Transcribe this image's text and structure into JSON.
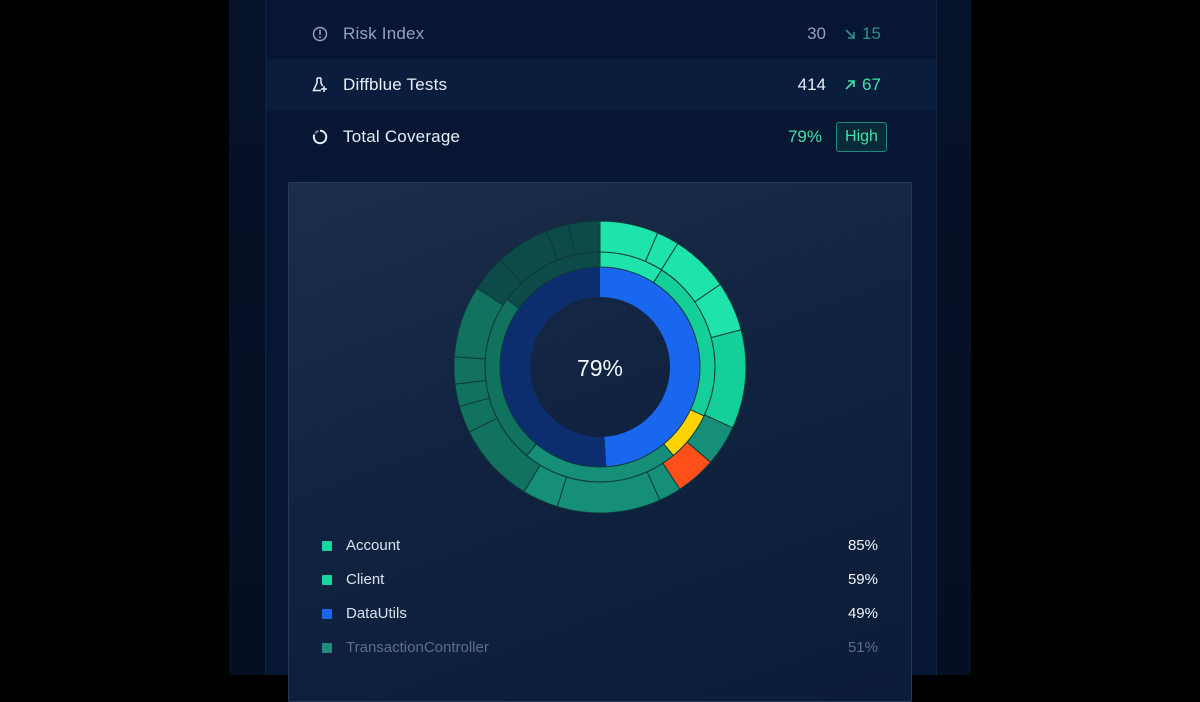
{
  "metrics": [
    {
      "label": "Risk Index",
      "value": "30",
      "delta": "15",
      "delta_direction": "down",
      "icon": "alert-circle-icon"
    },
    {
      "label": "Diffblue Tests",
      "value": "414",
      "delta": "67",
      "delta_direction": "up",
      "icon": "flask-plus-icon"
    },
    {
      "label": "Total Coverage",
      "value": "79%",
      "badge": "High",
      "icon": "coverage-ring-icon"
    }
  ],
  "chart": {
    "center_label": "79%"
  },
  "legend": [
    {
      "name": "Account",
      "percent": "85%",
      "color": "#17d6a0"
    },
    {
      "name": "Client",
      "percent": "59%",
      "color": "#17d6a0"
    },
    {
      "name": "DataUtils",
      "percent": "49%",
      "color": "#1967ef"
    },
    {
      "name": "TransactionController",
      "percent": "51%",
      "color": "#1e8c7e"
    }
  ],
  "chart_data": {
    "type": "sunburst",
    "center_value": "79%",
    "rings": {
      "inner": [
        {
          "value": 49,
          "color": "#1967ef"
        },
        {
          "value": 51,
          "color": "#0c2e6e"
        }
      ],
      "middle": [
        {
          "value": 9,
          "color": "#1ee4ac"
        },
        {
          "value": 23,
          "color": "#14cf98"
        },
        {
          "value": 7,
          "color": "#ffd400"
        },
        {
          "value": 22,
          "color": "#168f79"
        },
        {
          "value": 24,
          "color": "#11725f"
        },
        {
          "value": 15,
          "color": "#0c4b49"
        }
      ],
      "outer": [
        {
          "value": 6.5,
          "color": "#1ee4ac"
        },
        {
          "value": 2.5,
          "color": "#1ee4ac"
        },
        {
          "value": 6.5,
          "color": "#1ee4ac"
        },
        {
          "value": 5.5,
          "color": "#1ee4ac"
        },
        {
          "value": 11,
          "color": "#14cf98"
        },
        {
          "value": 4.5,
          "color": "#168f79"
        },
        {
          "value": 4.5,
          "color": "#ff4f1a"
        },
        {
          "value": 2.5,
          "color": "#168f79"
        },
        {
          "value": 11.5,
          "color": "#168f79"
        },
        {
          "value": 4,
          "color": "#168f79"
        },
        {
          "value": 9,
          "color": "#11725f"
        },
        {
          "value": 3,
          "color": "#11725f"
        },
        {
          "value": 2.5,
          "color": "#11725f"
        },
        {
          "value": 3,
          "color": "#11725f"
        },
        {
          "value": 8,
          "color": "#11725f"
        },
        {
          "value": 4,
          "color": "#0c4b49"
        },
        {
          "value": 6,
          "color": "#0c4b49"
        },
        {
          "value": 2.5,
          "color": "#0c4b49"
        },
        {
          "value": 3.5,
          "color": "#0c4b49"
        }
      ]
    }
  }
}
